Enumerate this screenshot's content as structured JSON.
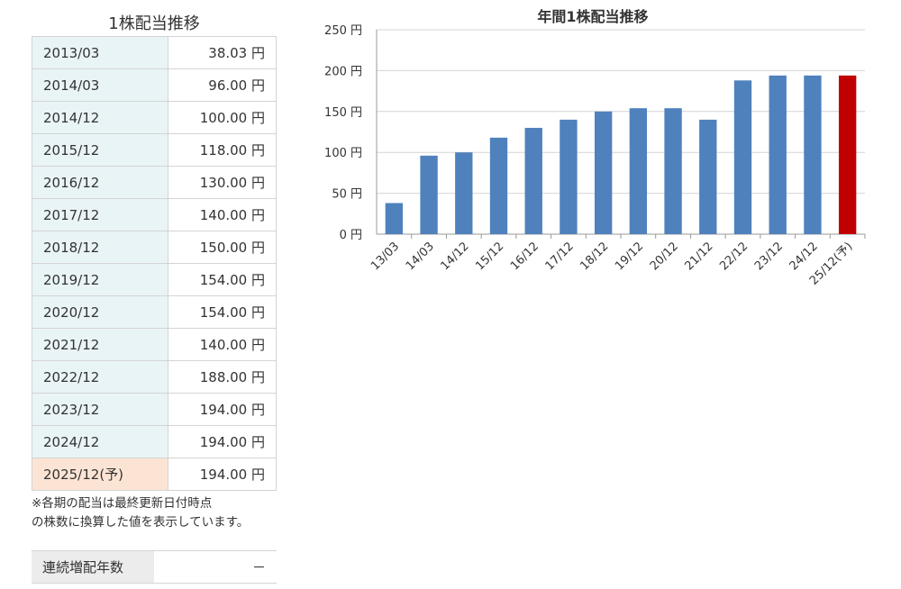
{
  "table": {
    "title": "1株配当推移",
    "rows": [
      {
        "period": "2013/03",
        "value": "38.03 円",
        "forecast": false
      },
      {
        "period": "2014/03",
        "value": "96.00 円",
        "forecast": false
      },
      {
        "period": "2014/12",
        "value": "100.00 円",
        "forecast": false
      },
      {
        "period": "2015/12",
        "value": "118.00 円",
        "forecast": false
      },
      {
        "period": "2016/12",
        "value": "130.00 円",
        "forecast": false
      },
      {
        "period": "2017/12",
        "value": "140.00 円",
        "forecast": false
      },
      {
        "period": "2018/12",
        "value": "150.00 円",
        "forecast": false
      },
      {
        "period": "2019/12",
        "value": "154.00 円",
        "forecast": false
      },
      {
        "period": "2020/12",
        "value": "154.00 円",
        "forecast": false
      },
      {
        "period": "2021/12",
        "value": "140.00 円",
        "forecast": false
      },
      {
        "period": "2022/12",
        "value": "188.00 円",
        "forecast": false
      },
      {
        "period": "2023/12",
        "value": "194.00 円",
        "forecast": false
      },
      {
        "period": "2024/12",
        "value": "194.00 円",
        "forecast": false
      },
      {
        "period": "2025/12(予)",
        "value": "194.00 円",
        "forecast": true
      }
    ],
    "note_line1": "※各期の配当は最終更新日付時点",
    "note_line2": "の株数に換算した値を表示しています。",
    "streak_label": "連続増配年数",
    "streak_value": "－"
  },
  "colors": {
    "actual": "#4f81bd",
    "forecast": "#c00000"
  },
  "chart_data": {
    "type": "bar",
    "title": "年間1株配当推移",
    "categories": [
      "13/03",
      "14/03",
      "14/12",
      "15/12",
      "16/12",
      "17/12",
      "18/12",
      "19/12",
      "20/12",
      "21/12",
      "22/12",
      "23/12",
      "24/12",
      "25/12(予)"
    ],
    "values": [
      38.03,
      96,
      100,
      118,
      130,
      140,
      150,
      154,
      154,
      140,
      188,
      194,
      194,
      194
    ],
    "forecast_index": 13,
    "ylim": [
      0,
      250
    ],
    "yticks": [
      0,
      50,
      100,
      150,
      200,
      250
    ],
    "ytick_labels": [
      "0 円",
      "50 円",
      "100 円",
      "150 円",
      "200 円",
      "250 円"
    ],
    "grid": true,
    "xlabel": "",
    "ylabel": ""
  }
}
